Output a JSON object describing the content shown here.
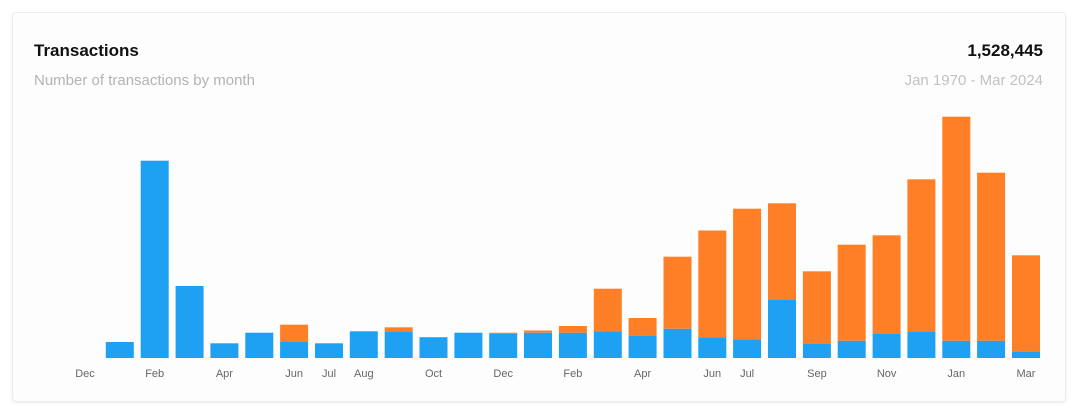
{
  "header": {
    "title": "Transactions",
    "subtitle": "Number of transactions by month",
    "total": "1,528,445",
    "range": "Jan 1970 - Mar 2024"
  },
  "colors": {
    "series_a": "#1ea1f2",
    "series_b": "#ff7f27"
  },
  "chart_data": {
    "type": "bar",
    "stacked": true,
    "ylim": [
      0,
      90000
    ],
    "grid": false,
    "legend": "none",
    "tick_labels": [
      "Dec",
      "",
      "Feb",
      "",
      "Apr",
      "",
      "Jun",
      "Jul",
      "Aug",
      "",
      "Oct",
      "",
      "Dec",
      "",
      "Feb",
      "",
      "Apr",
      "",
      "Jun",
      "Jul",
      "",
      "Sep",
      "",
      "Nov",
      "",
      "Jan",
      "",
      "Mar"
    ],
    "series": [
      {
        "values": [
          0,
          6000,
          74000,
          27000,
          5500,
          9500,
          6000,
          5500,
          10000,
          10000,
          7800,
          9500,
          9000,
          9500,
          9500,
          10000,
          8500,
          11000,
          7800,
          7000,
          22000,
          5500,
          6500,
          9000,
          10000,
          6500,
          6500,
          2500
        ]
      },
      {
        "values": [
          0,
          0,
          0,
          0,
          0,
          0,
          6500,
          0,
          0,
          1500,
          0,
          0,
          500,
          800,
          2500,
          16000,
          6500,
          27000,
          40000,
          49000,
          36000,
          27000,
          36000,
          37000,
          57000,
          84000,
          63000,
          36000
        ]
      }
    ]
  }
}
